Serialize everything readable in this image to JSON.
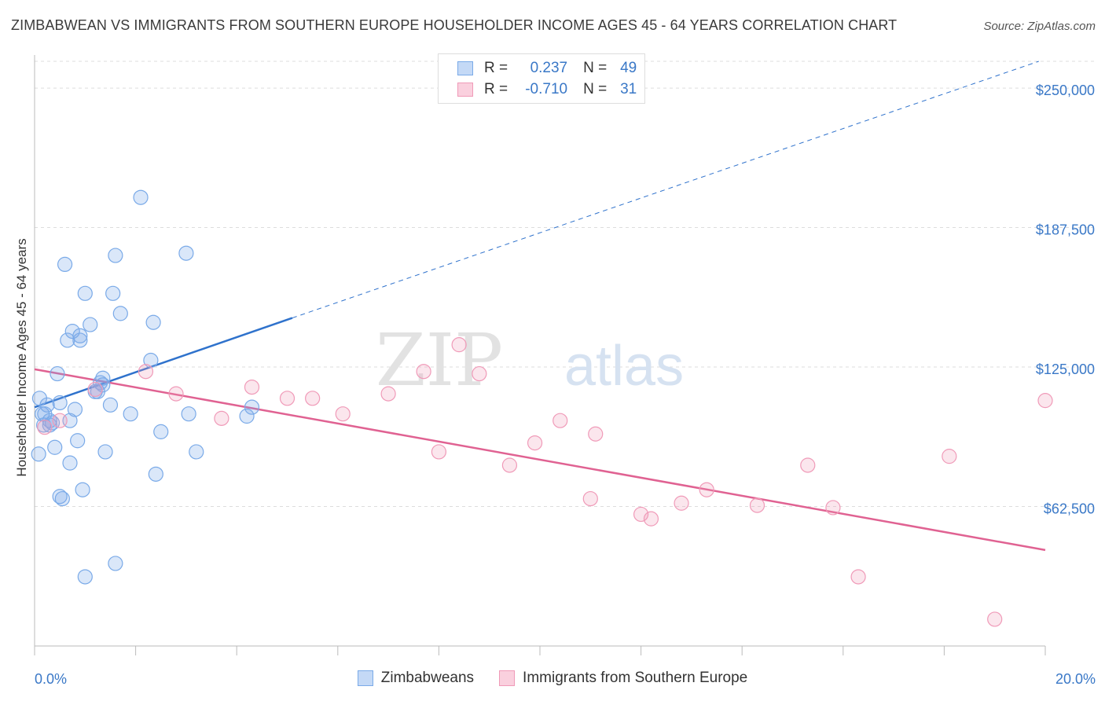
{
  "title": "ZIMBABWEAN VS IMMIGRANTS FROM SOUTHERN EUROPE HOUSEHOLDER INCOME AGES 45 - 64 YEARS CORRELATION CHART",
  "source": "Source: ZipAtlas.com",
  "watermark": "ZIPatlas",
  "legend": {
    "series1": {
      "r_label": "R =",
      "r_value": "0.237",
      "n_label": "N =",
      "n_value": "49",
      "color": "#7aaae8"
    },
    "series2": {
      "r_label": "R =",
      "r_value": "-0.710",
      "n_label": "N =",
      "n_value": "31",
      "color": "#f09ab8"
    }
  },
  "bottom_legend": [
    "Zimbabweans",
    "Immigrants from Southern Europe"
  ],
  "chart_data": {
    "type": "scatter",
    "title": "ZIMBABWEAN VS IMMIGRANTS FROM SOUTHERN EUROPE HOUSEHOLDER INCOME AGES 45 - 64 YEARS CORRELATION CHART",
    "xlabel": "",
    "ylabel": "Householder Income Ages 45 - 64 years",
    "xlim": [
      0,
      20
    ],
    "ylim": [
      0,
      262000
    ],
    "x_tick_labels": [
      "0.0%",
      "20.0%"
    ],
    "y_ticks": [
      62500,
      125000,
      187500,
      250000
    ],
    "y_tick_labels": [
      "$62,500",
      "$125,000",
      "$187,500",
      "$250,000"
    ],
    "grid": true,
    "series": [
      {
        "name": "Zimbabweans",
        "color": "#7aaae8",
        "line_color": "#2f72cc",
        "trend": {
          "x0": 0,
          "y0": 107000,
          "x1": 5.1,
          "y1": 147000,
          "dash_x1": 20,
          "dash_y1": 263000
        },
        "points": [
          [
            0.1,
            111000
          ],
          [
            0.2,
            104000
          ],
          [
            0.25,
            108000
          ],
          [
            0.3,
            101000
          ],
          [
            0.35,
            100000
          ],
          [
            0.4,
            89000
          ],
          [
            0.45,
            122000
          ],
          [
            0.5,
            67000
          ],
          [
            0.55,
            66000
          ],
          [
            0.6,
            171000
          ],
          [
            0.65,
            137000
          ],
          [
            0.7,
            82000
          ],
          [
            0.75,
            141000
          ],
          [
            0.8,
            106000
          ],
          [
            0.85,
            92000
          ],
          [
            0.9,
            137000
          ],
          [
            0.95,
            70000
          ],
          [
            1.0,
            158000
          ],
          [
            1.1,
            144000
          ],
          [
            1.2,
            114000
          ],
          [
            1.3,
            118000
          ],
          [
            1.35,
            120000
          ],
          [
            1.4,
            87000
          ],
          [
            1.5,
            108000
          ],
          [
            1.55,
            158000
          ],
          [
            1.7,
            149000
          ],
          [
            1.9,
            104000
          ],
          [
            2.1,
            201000
          ],
          [
            2.3,
            128000
          ],
          [
            2.35,
            145000
          ],
          [
            2.4,
            77000
          ],
          [
            2.5,
            96000
          ],
          [
            3.0,
            176000
          ],
          [
            3.05,
            104000
          ],
          [
            0.08,
            86000
          ],
          [
            0.18,
            99000
          ],
          [
            1.6,
            37000
          ],
          [
            1.0,
            31000
          ],
          [
            0.3,
            99000
          ],
          [
            0.5,
            109000
          ],
          [
            0.7,
            101000
          ],
          [
            1.25,
            114000
          ],
          [
            4.3,
            107000
          ],
          [
            1.6,
            175000
          ],
          [
            3.2,
            87000
          ],
          [
            0.15,
            104000
          ],
          [
            0.9,
            139000
          ],
          [
            1.35,
            117000
          ],
          [
            4.2,
            103000
          ]
        ]
      },
      {
        "name": "Immigrants from Southern Europe",
        "color": "#f09ab8",
        "line_color": "#e06292",
        "trend": {
          "x0": 0,
          "y0": 124000,
          "x1": 20,
          "y1": 43000
        },
        "points": [
          [
            0.2,
            98000
          ],
          [
            0.5,
            101000
          ],
          [
            1.2,
            115000
          ],
          [
            2.2,
            123000
          ],
          [
            2.8,
            113000
          ],
          [
            3.7,
            102000
          ],
          [
            4.3,
            116000
          ],
          [
            5.0,
            111000
          ],
          [
            5.5,
            111000
          ],
          [
            6.1,
            104000
          ],
          [
            7.0,
            113000
          ],
          [
            7.7,
            123000
          ],
          [
            8.0,
            87000
          ],
          [
            8.4,
            135000
          ],
          [
            8.8,
            122000
          ],
          [
            9.4,
            81000
          ],
          [
            9.9,
            91000
          ],
          [
            10.4,
            101000
          ],
          [
            11.0,
            66000
          ],
          [
            11.1,
            95000
          ],
          [
            12.0,
            59000
          ],
          [
            12.2,
            57000
          ],
          [
            12.8,
            64000
          ],
          [
            13.3,
            70000
          ],
          [
            14.3,
            63000
          ],
          [
            15.3,
            81000
          ],
          [
            15.8,
            62000
          ],
          [
            16.3,
            31000
          ],
          [
            18.1,
            85000
          ],
          [
            19.0,
            12000
          ],
          [
            20.0,
            110000
          ]
        ]
      }
    ]
  }
}
